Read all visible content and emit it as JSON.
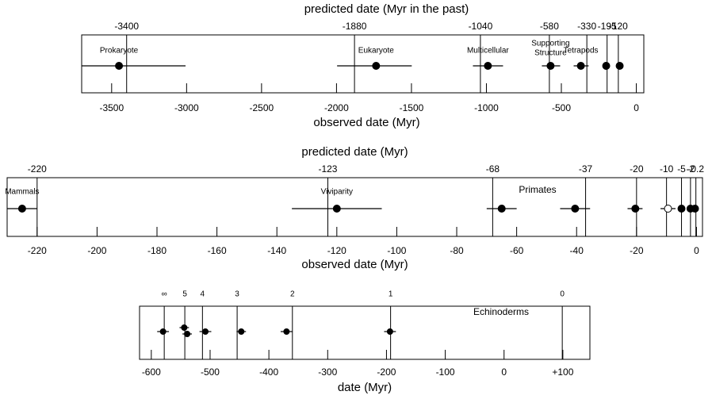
{
  "chart_data": [
    {
      "type": "errorbar",
      "title": "predicted date (Myr in the past)",
      "xlabel": "observed date (Myr)",
      "xlim": [
        -3700,
        50
      ],
      "xticks": [
        -3500,
        -3000,
        -2500,
        -2000,
        -1500,
        -1000,
        -500,
        0
      ],
      "top_ticks": [
        -3400,
        -1880,
        -1040,
        -580,
        -330,
        -195,
        -120
      ],
      "color": "#000000",
      "points": [
        {
          "label": [
            "Prokaryote"
          ],
          "value": -3451,
          "low": -3700,
          "high": -3007
        },
        {
          "label": [
            "Eukaryote"
          ],
          "value": -1736,
          "low": -1996,
          "high": -1498
        },
        {
          "label": [
            "Multicellular"
          ],
          "value": -990,
          "low": -1090,
          "high": -889
        },
        {
          "label": [
            "Supporting",
            "Structure"
          ],
          "value": -572,
          "low": -630,
          "high": -508
        },
        {
          "label": [
            "Tetrapods"
          ],
          "value": -370,
          "low": -418,
          "high": -318
        },
        {
          "value": -201
        },
        {
          "value": -111
        }
      ]
    },
    {
      "type": "errorbar",
      "title": "predicted date (Myr)",
      "xlabel": "observed date (Myr)",
      "xlim": [
        -230,
        2
      ],
      "xticks": [
        -220,
        -200,
        -180,
        -160,
        -140,
        -120,
        -100,
        -80,
        -60,
        -40,
        -20,
        0
      ],
      "top_ticks": [
        -220,
        -123,
        -68,
        -37,
        -20,
        -10,
        -5,
        -2,
        -0.2
      ],
      "color": "#000000",
      "panel_label": "Primates",
      "points": [
        {
          "label": [
            "Mammals"
          ],
          "value": -225,
          "low": -230,
          "high": -220
        },
        {
          "label": [
            "Viviparity"
          ],
          "value": -120,
          "low": -135,
          "high": -105
        },
        {
          "value": -65,
          "low": -70,
          "high": -60
        },
        {
          "value": -40.5,
          "low": -45.5,
          "high": -35.5
        },
        {
          "value": -20.4,
          "low": -23,
          "high": -18
        },
        {
          "value": -9.5,
          "low": -12,
          "high": -7,
          "marker": "open"
        },
        {
          "value": -5
        },
        {
          "value": -2
        },
        {
          "value": -0.5
        }
      ]
    },
    {
      "type": "errorbar",
      "xlabel": "date (Myr)",
      "xlim": [
        -620,
        146
      ],
      "xticks": [
        -600,
        -500,
        -400,
        -300,
        -200,
        -100,
        0,
        {
          "value": 100,
          "label": "+100"
        }
      ],
      "top_ticks": [
        {
          "value": -578,
          "label": "∞"
        },
        {
          "value": -543,
          "label": "5"
        },
        {
          "value": -513,
          "label": "4"
        },
        {
          "value": -454,
          "label": "3"
        },
        {
          "value": -360,
          "label": "2"
        },
        {
          "value": -193,
          "label": "1"
        },
        {
          "value": 99,
          "label": "0"
        }
      ],
      "color": "#000000",
      "panel_label": "Echinoderms",
      "points": [
        {
          "value": -580,
          "low": -590,
          "high": -570
        },
        {
          "value": -544,
          "low": -552,
          "high": -536
        },
        {
          "value": -539,
          "low": -547,
          "high": -531
        },
        {
          "value": -508,
          "low": -518,
          "high": -498
        },
        {
          "value": -447,
          "low": -455,
          "high": -439
        },
        {
          "value": -370,
          "low": -380,
          "high": -360
        },
        {
          "value": -194,
          "low": -204,
          "high": -184
        }
      ]
    }
  ]
}
